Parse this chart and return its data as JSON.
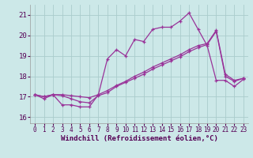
{
  "xlabel": "Windchill (Refroidissement éolien,°C)",
  "xlim": [
    -0.5,
    23.5
  ],
  "ylim": [
    15.7,
    21.5
  ],
  "yticks": [
    16,
    17,
    18,
    19,
    20,
    21
  ],
  "xticks": [
    0,
    1,
    2,
    3,
    4,
    5,
    6,
    7,
    8,
    9,
    10,
    11,
    12,
    13,
    14,
    15,
    16,
    17,
    18,
    19,
    20,
    21,
    22,
    23
  ],
  "bg_color": "#cce8e8",
  "line_color": "#993399",
  "grid_color": "#aacccc",
  "series1_x": [
    0,
    1,
    2,
    3,
    4,
    5,
    6,
    7,
    8,
    9,
    10,
    11,
    12,
    13,
    14,
    15,
    16,
    17,
    18,
    19,
    20,
    21,
    22,
    23
  ],
  "series1_y": [
    17.1,
    16.9,
    17.1,
    16.6,
    16.6,
    16.5,
    16.5,
    17.1,
    18.85,
    19.3,
    19.0,
    19.8,
    19.7,
    20.3,
    20.4,
    20.4,
    20.7,
    21.1,
    20.3,
    19.5,
    17.8,
    17.8,
    17.5,
    17.85
  ],
  "series2_x": [
    0,
    1,
    2,
    3,
    4,
    5,
    6,
    7,
    8,
    9,
    10,
    11,
    12,
    13,
    14,
    15,
    16,
    17,
    18,
    19,
    20,
    21,
    22,
    23
  ],
  "series2_y": [
    17.1,
    17.0,
    17.1,
    17.05,
    16.9,
    16.75,
    16.7,
    17.05,
    17.2,
    17.5,
    17.7,
    17.9,
    18.1,
    18.35,
    18.55,
    18.75,
    18.95,
    19.2,
    19.4,
    19.55,
    20.2,
    18.0,
    17.75,
    17.9
  ],
  "series3_x": [
    0,
    1,
    2,
    3,
    4,
    5,
    6,
    7,
    8,
    9,
    10,
    11,
    12,
    13,
    14,
    15,
    16,
    17,
    18,
    19,
    20,
    21,
    22,
    23
  ],
  "series3_y": [
    17.1,
    17.0,
    17.1,
    17.1,
    17.05,
    17.0,
    16.95,
    17.1,
    17.3,
    17.55,
    17.75,
    18.0,
    18.2,
    18.45,
    18.65,
    18.85,
    19.05,
    19.3,
    19.5,
    19.6,
    20.25,
    18.1,
    17.8,
    17.9
  ]
}
